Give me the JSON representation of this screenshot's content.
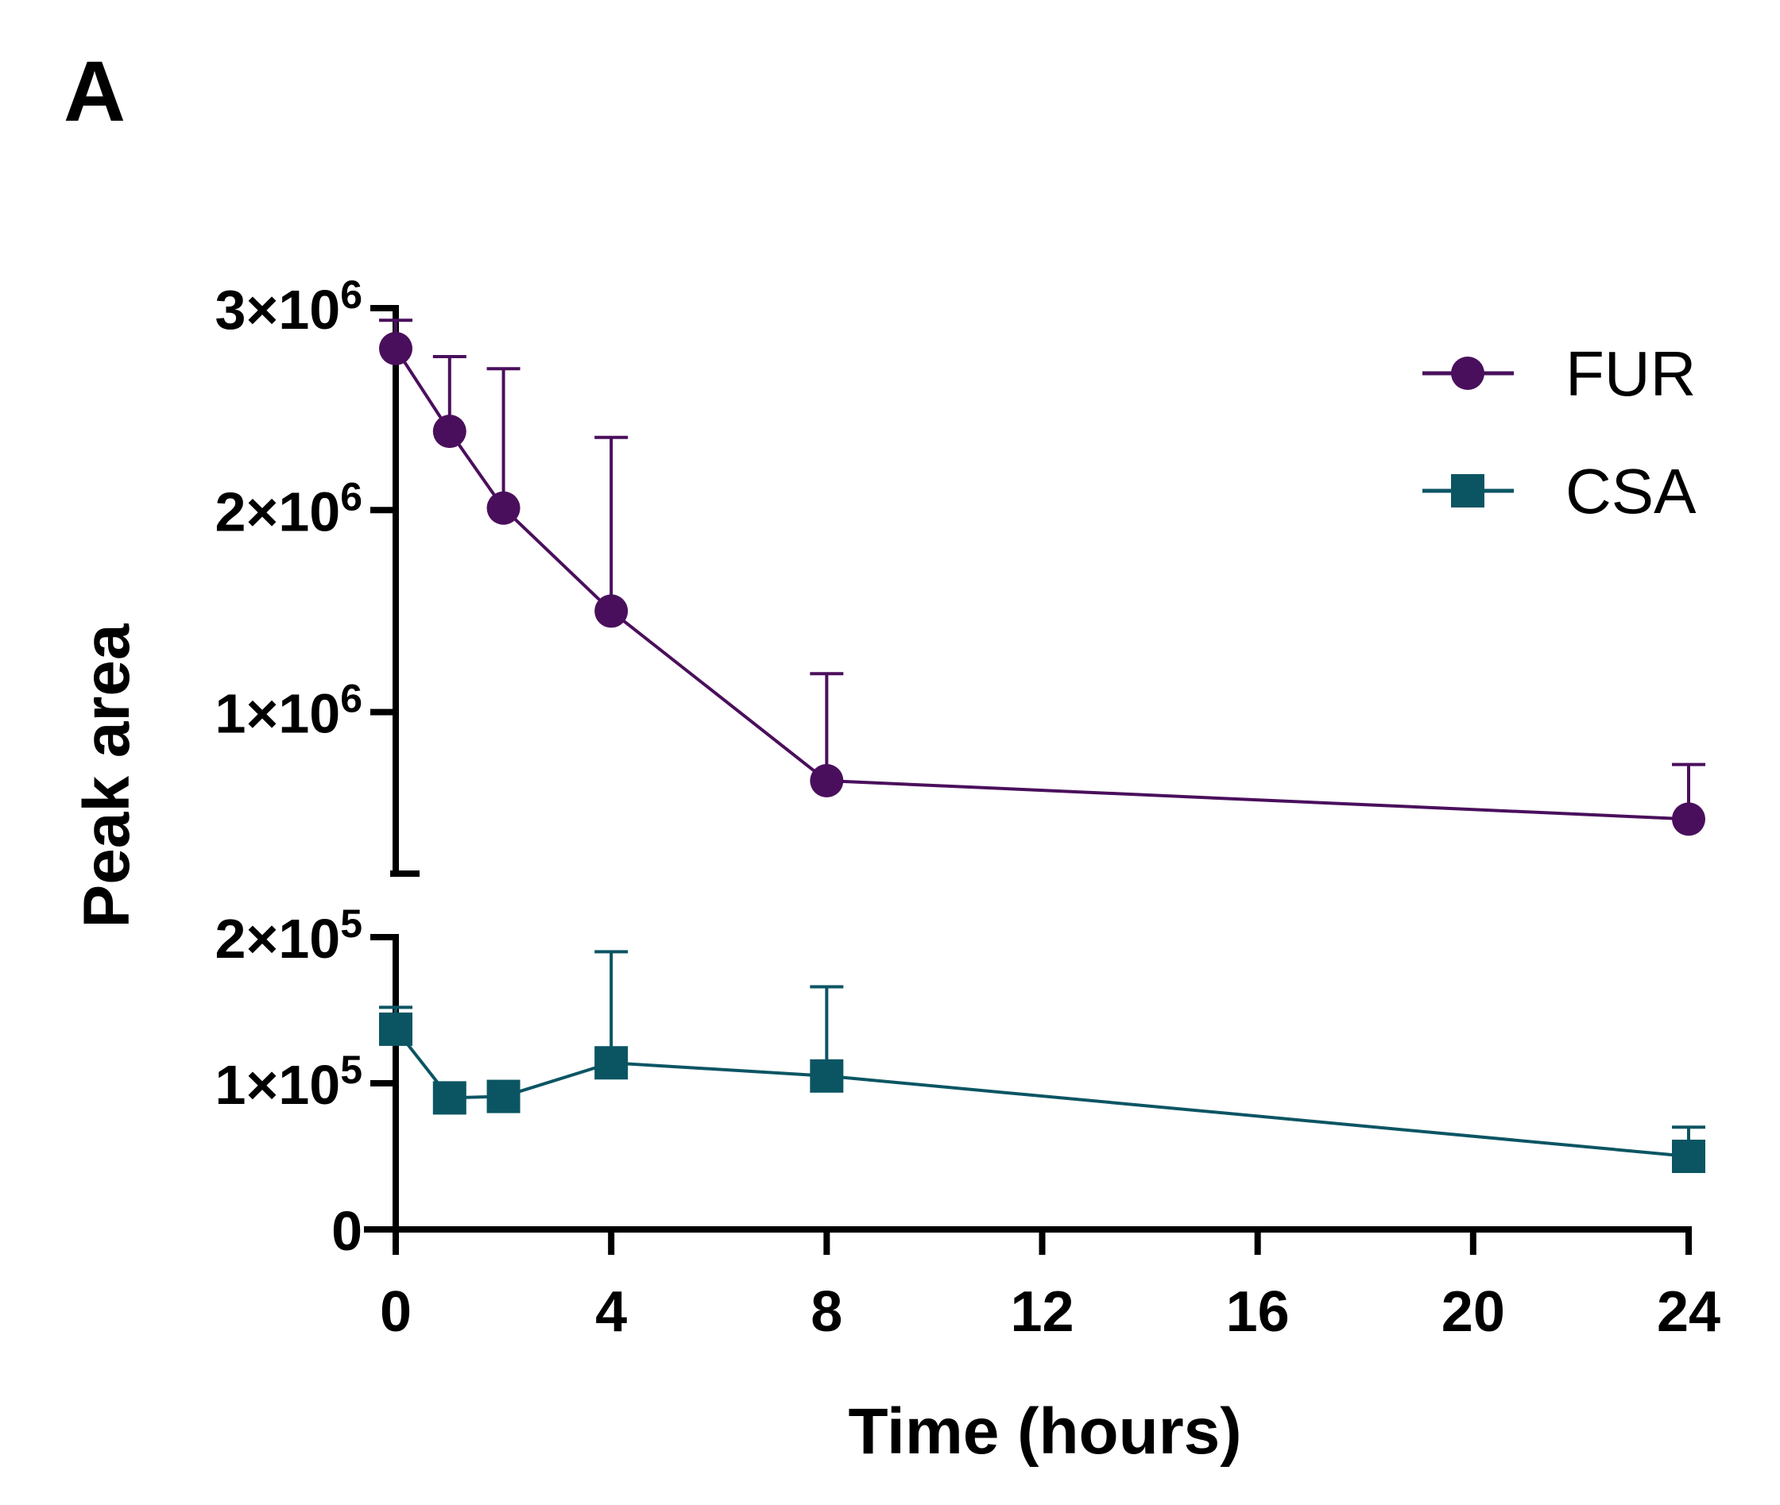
{
  "panel_label": "A",
  "chart_data": {
    "type": "line",
    "x_axis": {
      "label": "Time (hours)",
      "range": [
        0,
        24
      ],
      "ticks": [
        0,
        4,
        8,
        12,
        16,
        20,
        24
      ],
      "tick_labels": [
        "0",
        "4",
        "8",
        "12",
        "16",
        "20",
        "24"
      ]
    },
    "y_axis": {
      "label": "Peak area",
      "broken": true,
      "lower_segment": {
        "range": [
          0,
          200000
        ],
        "ticks": [
          0,
          100000,
          200000
        ],
        "tick_labels": [
          {
            "text": "0",
            "base": "0",
            "exp": ""
          },
          {
            "text": "1×10^5",
            "base": "1×10",
            "exp": "5"
          },
          {
            "text": "2×10^5",
            "base": "2×10",
            "exp": "5"
          }
        ]
      },
      "upper_segment": {
        "range": [
          200000,
          3000000
        ],
        "ticks": [
          1000000,
          2000000,
          3000000
        ],
        "tick_labels": [
          {
            "text": "1×10^6",
            "base": "1×10",
            "exp": "6"
          },
          {
            "text": "2×10^6",
            "base": "2×10",
            "exp": "6"
          },
          {
            "text": "3×10^6",
            "base": "3×10",
            "exp": "6"
          }
        ]
      }
    },
    "series": [
      {
        "name": "FUR",
        "color": "#4a0f5c",
        "marker": "circle",
        "x": [
          0,
          1,
          2,
          4,
          8,
          24
        ],
        "y": [
          2800000,
          2390000,
          2010000,
          1500000,
          660000,
          470000
        ],
        "error_upper": [
          2940000,
          2760000,
          2700000,
          2360000,
          1190000,
          740000
        ]
      },
      {
        "name": "CSA",
        "color": "#0b5563",
        "marker": "square",
        "x": [
          0,
          1,
          2,
          4,
          8,
          24
        ],
        "y": [
          137000,
          90000,
          91000,
          114000,
          105000,
          50000
        ],
        "error_upper": [
          152000,
          90000,
          91000,
          190000,
          166000,
          70000
        ]
      }
    ],
    "legend": {
      "position": "top-right",
      "entries": [
        "FUR",
        "CSA"
      ]
    }
  }
}
